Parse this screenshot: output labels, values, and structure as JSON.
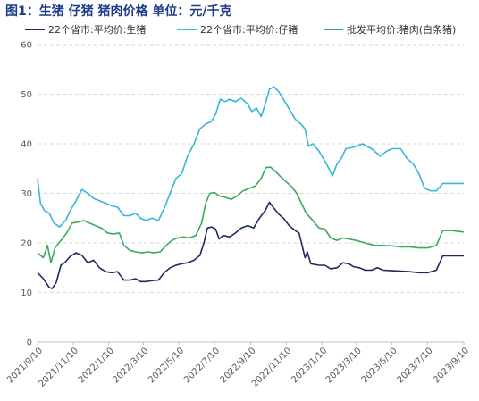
{
  "chart_data": {
    "type": "line",
    "title": "图1：生猪 仔猪 猪肉价格 单位：元/千克",
    "ylim": [
      0,
      60
    ],
    "yticks": [
      0,
      10,
      20,
      30,
      40,
      50,
      60
    ],
    "xticks": [
      "2021/9/10",
      "2021/11/10",
      "2022/1/10",
      "2022/3/10",
      "2022/5/10",
      "2022/7/10",
      "2022/9/10",
      "2022/11/10",
      "2023/1/10",
      "2023/3/10",
      "2023/5/10",
      "2023/7/10",
      "2023/9/10"
    ],
    "grid": "horizontal-dashed",
    "legend_position": "top",
    "series": [
      {
        "name": "22个省市:平均价:生猪",
        "color": "#1f2a5c",
        "points": [
          [
            "2021-09-10",
            14
          ],
          [
            "2021-09-20",
            12.8
          ],
          [
            "2021-09-30",
            11
          ],
          [
            "2021-10-05",
            10.8
          ],
          [
            "2021-10-12",
            12
          ],
          [
            "2021-10-20",
            15.5
          ],
          [
            "2021-10-28",
            16.2
          ],
          [
            "2021-11-05",
            17.3
          ],
          [
            "2021-11-15",
            18
          ],
          [
            "2021-11-25",
            17.5
          ],
          [
            "2021-12-05",
            16
          ],
          [
            "2021-12-15",
            16.5
          ],
          [
            "2021-12-25",
            15
          ],
          [
            "2022-01-05",
            14.2
          ],
          [
            "2022-01-15",
            14
          ],
          [
            "2022-01-25",
            14.2
          ],
          [
            "2022-02-05",
            12.5
          ],
          [
            "2022-02-15",
            12.5
          ],
          [
            "2022-02-25",
            12.8
          ],
          [
            "2022-03-05",
            12.2
          ],
          [
            "2022-03-15",
            12.2
          ],
          [
            "2022-03-25",
            12.4
          ],
          [
            "2022-04-05",
            12.5
          ],
          [
            "2022-04-15",
            14
          ],
          [
            "2022-04-25",
            15
          ],
          [
            "2022-05-05",
            15.5
          ],
          [
            "2022-05-15",
            15.8
          ],
          [
            "2022-05-25",
            16
          ],
          [
            "2022-06-05",
            16.5
          ],
          [
            "2022-06-15",
            17.5
          ],
          [
            "2022-06-22",
            20
          ],
          [
            "2022-06-28",
            23
          ],
          [
            "2022-07-05",
            23.2
          ],
          [
            "2022-07-12",
            22.8
          ],
          [
            "2022-07-18",
            20.8
          ],
          [
            "2022-07-25",
            21.5
          ],
          [
            "2022-08-05",
            21.2
          ],
          [
            "2022-08-15",
            22
          ],
          [
            "2022-08-25",
            23
          ],
          [
            "2022-09-05",
            23.5
          ],
          [
            "2022-09-15",
            23
          ],
          [
            "2022-09-25",
            25
          ],
          [
            "2022-10-05",
            26.5
          ],
          [
            "2022-10-12",
            28.2
          ],
          [
            "2022-10-20",
            27
          ],
          [
            "2022-10-28",
            25.8
          ],
          [
            "2022-11-05",
            25
          ],
          [
            "2022-11-15",
            23.5
          ],
          [
            "2022-11-25",
            22.5
          ],
          [
            "2022-12-02",
            22
          ],
          [
            "2022-12-08",
            19
          ],
          [
            "2022-12-12",
            17
          ],
          [
            "2022-12-16",
            18.2
          ],
          [
            "2022-12-22",
            15.8
          ],
          [
            "2023-01-05",
            15.5
          ],
          [
            "2023-01-15",
            15.5
          ],
          [
            "2023-01-25",
            14.8
          ],
          [
            "2023-02-05",
            15
          ],
          [
            "2023-02-15",
            16
          ],
          [
            "2023-02-25",
            15.8
          ],
          [
            "2023-03-05",
            15.2
          ],
          [
            "2023-03-15",
            15
          ],
          [
            "2023-03-25",
            14.5
          ],
          [
            "2023-04-05",
            14.5
          ],
          [
            "2023-04-15",
            15
          ],
          [
            "2023-04-25",
            14.5
          ],
          [
            "2023-05-10",
            14.4
          ],
          [
            "2023-05-25",
            14.3
          ],
          [
            "2023-06-10",
            14.2
          ],
          [
            "2023-06-25",
            14
          ],
          [
            "2023-07-10",
            14
          ],
          [
            "2023-07-25",
            14.5
          ],
          [
            "2023-08-05",
            17.4
          ],
          [
            "2023-08-20",
            17.4
          ],
          [
            "2023-09-10",
            17.4
          ]
        ]
      },
      {
        "name": "22个省市:平均价:仔猪",
        "color": "#38b6d8",
        "points": [
          [
            "2021-09-10",
            33
          ],
          [
            "2021-09-15",
            28
          ],
          [
            "2021-09-22",
            26.5
          ],
          [
            "2021-09-30",
            26
          ],
          [
            "2021-10-08",
            24
          ],
          [
            "2021-10-18",
            23.2
          ],
          [
            "2021-10-28",
            24.5
          ],
          [
            "2021-11-05",
            26.5
          ],
          [
            "2021-11-15",
            28.5
          ],
          [
            "2021-11-25",
            30.8
          ],
          [
            "2021-12-05",
            30
          ],
          [
            "2021-12-15",
            29
          ],
          [
            "2021-12-25",
            28.5
          ],
          [
            "2022-01-05",
            28
          ],
          [
            "2022-01-15",
            27.5
          ],
          [
            "2022-01-25",
            27.2
          ],
          [
            "2022-02-05",
            25.5
          ],
          [
            "2022-02-15",
            25.5
          ],
          [
            "2022-02-25",
            26
          ],
          [
            "2022-03-05",
            25
          ],
          [
            "2022-03-15",
            24.5
          ],
          [
            "2022-03-25",
            25
          ],
          [
            "2022-04-05",
            24.5
          ],
          [
            "2022-04-15",
            27
          ],
          [
            "2022-04-25",
            30
          ],
          [
            "2022-05-05",
            33
          ],
          [
            "2022-05-15",
            34
          ],
          [
            "2022-05-25",
            37.5
          ],
          [
            "2022-06-05",
            40
          ],
          [
            "2022-06-15",
            43
          ],
          [
            "2022-06-25",
            44
          ],
          [
            "2022-07-05",
            44.5
          ],
          [
            "2022-07-12",
            46
          ],
          [
            "2022-07-20",
            49
          ],
          [
            "2022-07-28",
            48.5
          ],
          [
            "2022-08-05",
            49
          ],
          [
            "2022-08-15",
            48.5
          ],
          [
            "2022-08-25",
            49.2
          ],
          [
            "2022-09-05",
            48
          ],
          [
            "2022-09-12",
            46.5
          ],
          [
            "2022-09-20",
            47.2
          ],
          [
            "2022-09-28",
            45.5
          ],
          [
            "2022-10-05",
            48
          ],
          [
            "2022-10-12",
            51
          ],
          [
            "2022-10-20",
            51.5
          ],
          [
            "2022-10-28",
            50.5
          ],
          [
            "2022-11-05",
            49
          ],
          [
            "2022-11-15",
            47
          ],
          [
            "2022-11-25",
            45
          ],
          [
            "2022-12-05",
            44
          ],
          [
            "2022-12-12",
            43
          ],
          [
            "2022-12-18",
            39.5
          ],
          [
            "2022-12-25",
            40
          ],
          [
            "2023-01-05",
            38.5
          ],
          [
            "2023-01-15",
            36.5
          ],
          [
            "2023-01-22",
            35
          ],
          [
            "2023-01-28",
            33.5
          ],
          [
            "2023-02-05",
            36
          ],
          [
            "2023-02-12",
            37
          ],
          [
            "2023-02-20",
            39
          ],
          [
            "2023-03-01",
            39.2
          ],
          [
            "2023-03-10",
            39.5
          ],
          [
            "2023-03-20",
            40
          ],
          [
            "2023-04-05",
            39
          ],
          [
            "2023-04-20",
            37.5
          ],
          [
            "2023-05-01",
            38.5
          ],
          [
            "2023-05-10",
            39
          ],
          [
            "2023-05-25",
            39
          ],
          [
            "2023-06-05",
            37
          ],
          [
            "2023-06-15",
            36
          ],
          [
            "2023-06-25",
            34
          ],
          [
            "2023-07-05",
            31
          ],
          [
            "2023-07-15",
            30.5
          ],
          [
            "2023-07-25",
            30.5
          ],
          [
            "2023-08-05",
            32
          ],
          [
            "2023-08-20",
            32
          ],
          [
            "2023-09-10",
            32
          ]
        ]
      },
      {
        "name": "批发平均价:猪肉(白条猪)",
        "color": "#3aaa5c",
        "points": [
          [
            "2021-09-10",
            18
          ],
          [
            "2021-09-20",
            17
          ],
          [
            "2021-09-27",
            19.5
          ],
          [
            "2021-10-03",
            16
          ],
          [
            "2021-10-10",
            19
          ],
          [
            "2021-10-20",
            20.5
          ],
          [
            "2021-10-30",
            22
          ],
          [
            "2021-11-08",
            24
          ],
          [
            "2021-11-18",
            24.2
          ],
          [
            "2021-11-28",
            24.5
          ],
          [
            "2021-12-08",
            24
          ],
          [
            "2021-12-18",
            23.5
          ],
          [
            "2021-12-28",
            23
          ],
          [
            "2022-01-08",
            22
          ],
          [
            "2022-01-18",
            21.8
          ],
          [
            "2022-01-28",
            22
          ],
          [
            "2022-02-05",
            19.5
          ],
          [
            "2022-02-15",
            18.5
          ],
          [
            "2022-02-25",
            18.2
          ],
          [
            "2022-03-08",
            18
          ],
          [
            "2022-03-18",
            18.2
          ],
          [
            "2022-03-28",
            18
          ],
          [
            "2022-04-08",
            18.2
          ],
          [
            "2022-04-18",
            19.5
          ],
          [
            "2022-04-28",
            20.5
          ],
          [
            "2022-05-08",
            21
          ],
          [
            "2022-05-18",
            21.2
          ],
          [
            "2022-05-28",
            21
          ],
          [
            "2022-06-08",
            21.5
          ],
          [
            "2022-06-18",
            24
          ],
          [
            "2022-06-25",
            28
          ],
          [
            "2022-07-02",
            30
          ],
          [
            "2022-07-10",
            30.2
          ],
          [
            "2022-07-18",
            29.5
          ],
          [
            "2022-07-28",
            29.2
          ],
          [
            "2022-08-08",
            28.8
          ],
          [
            "2022-08-18",
            29.5
          ],
          [
            "2022-08-28",
            30.5
          ],
          [
            "2022-09-08",
            31
          ],
          [
            "2022-09-18",
            31.5
          ],
          [
            "2022-09-28",
            33
          ],
          [
            "2022-10-06",
            35.2
          ],
          [
            "2022-10-14",
            35.3
          ],
          [
            "2022-10-22",
            34.5
          ],
          [
            "2022-10-30",
            33.5
          ],
          [
            "2022-11-08",
            32.5
          ],
          [
            "2022-11-18",
            31.5
          ],
          [
            "2022-11-28",
            30
          ],
          [
            "2022-12-06",
            28
          ],
          [
            "2022-12-14",
            26
          ],
          [
            "2022-12-22",
            25
          ],
          [
            "2023-01-05",
            23
          ],
          [
            "2023-01-15",
            22.8
          ],
          [
            "2023-01-25",
            21
          ],
          [
            "2023-02-05",
            20.5
          ],
          [
            "2023-02-15",
            21
          ],
          [
            "2023-02-25",
            20.8
          ],
          [
            "2023-03-10",
            20.5
          ],
          [
            "2023-03-25",
            20
          ],
          [
            "2023-04-10",
            19.5
          ],
          [
            "2023-04-25",
            19.5
          ],
          [
            "2023-05-10",
            19.4
          ],
          [
            "2023-05-25",
            19.2
          ],
          [
            "2023-06-10",
            19.2
          ],
          [
            "2023-06-25",
            19
          ],
          [
            "2023-07-10",
            19
          ],
          [
            "2023-07-25",
            19.5
          ],
          [
            "2023-08-05",
            22.5
          ],
          [
            "2023-08-20",
            22.5
          ],
          [
            "2023-09-10",
            22.2
          ]
        ]
      }
    ]
  }
}
